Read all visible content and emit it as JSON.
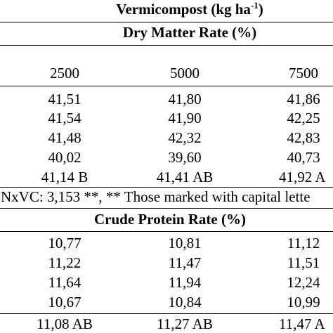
{
  "header": {
    "vermicompost_prefix": "Vermicompost (kg ha",
    "vermicompost_sup": "-1",
    "vermicompost_suffix": ")",
    "dry_matter_title": "Dry Matter Rate (%)",
    "crude_protein_title": "Crude Protein Rate (%)"
  },
  "columns": [
    "2500",
    "5000",
    "7500"
  ],
  "dry_matter": {
    "rows": [
      [
        "41,51",
        "41,80",
        "41,86"
      ],
      [
        "41,54",
        "41,90",
        "42,25"
      ],
      [
        "41,48",
        "42,32",
        "42,83"
      ],
      [
        "40,02",
        "39,60",
        "40,73"
      ],
      [
        "41,14 B",
        "41,41 AB",
        "41,92 A"
      ]
    ],
    "note": "NxVC: 3,153 **, ** Those marked with capital lette"
  },
  "crude_protein": {
    "rows": [
      [
        "10,77",
        "10,81",
        "11,12"
      ],
      [
        "11,22",
        "11,47",
        "11,51"
      ],
      [
        "11,64",
        "11,94",
        "12,24"
      ],
      [
        "10,67",
        "10,84",
        "10,99"
      ],
      [
        "11,08 AB",
        "11,27 AB",
        "11,47 A"
      ]
    ]
  }
}
